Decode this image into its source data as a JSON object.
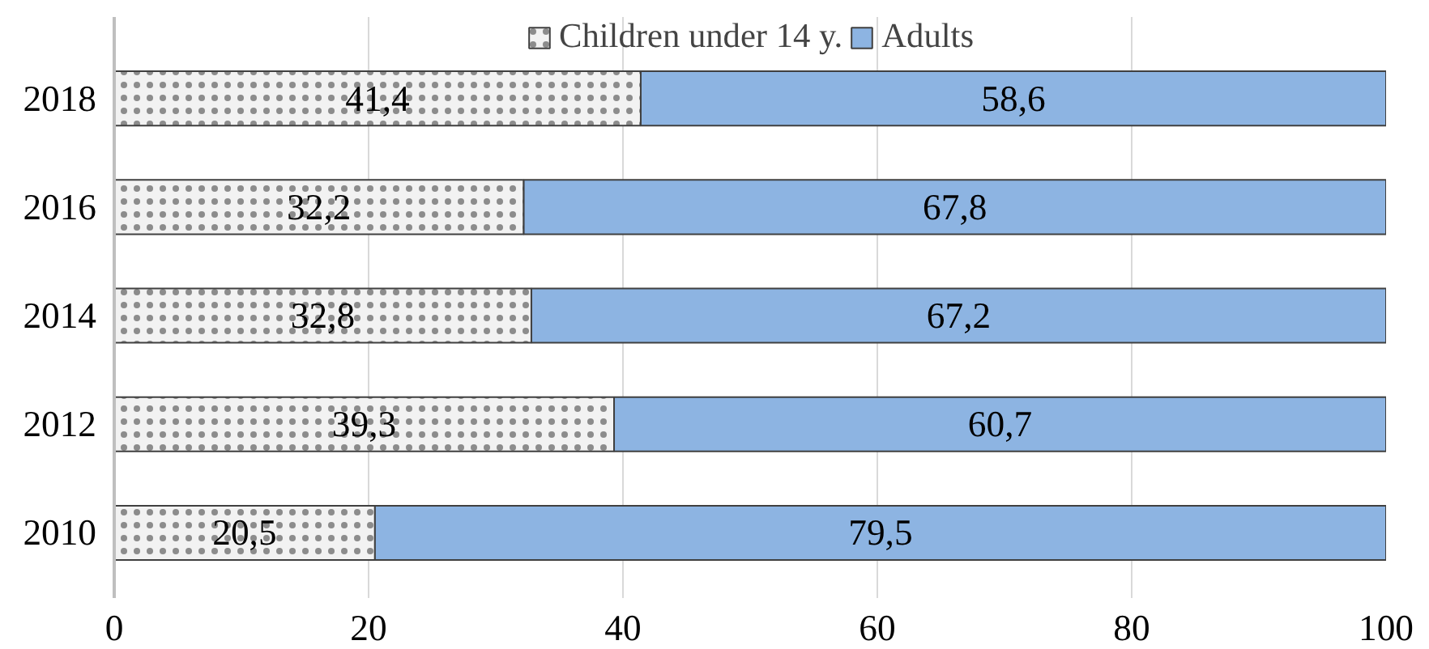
{
  "chart_data": {
    "type": "bar",
    "orientation": "horizontal",
    "stacked": true,
    "categories": [
      "2018",
      "2016",
      "2014",
      "2012",
      "2010"
    ],
    "series": [
      {
        "name": "Children under 14 y.",
        "color": "#f2f2f2",
        "values": [
          41.4,
          32.2,
          32.8,
          39.3,
          20.5
        ],
        "value_labels": [
          "41,4",
          "32,2",
          "32,8",
          "39,3",
          "20,5"
        ]
      },
      {
        "name": "Adults",
        "color": "#8db4e2",
        "values": [
          58.6,
          67.8,
          67.2,
          60.7,
          79.5
        ],
        "value_labels": [
          "58,6",
          "67,8",
          "67,2",
          "60,7",
          "79,5"
        ]
      }
    ],
    "xlim": [
      0,
      100
    ],
    "xticks": [
      0,
      20,
      40,
      60,
      80,
      100
    ],
    "grid": "x",
    "legend": "top"
  }
}
